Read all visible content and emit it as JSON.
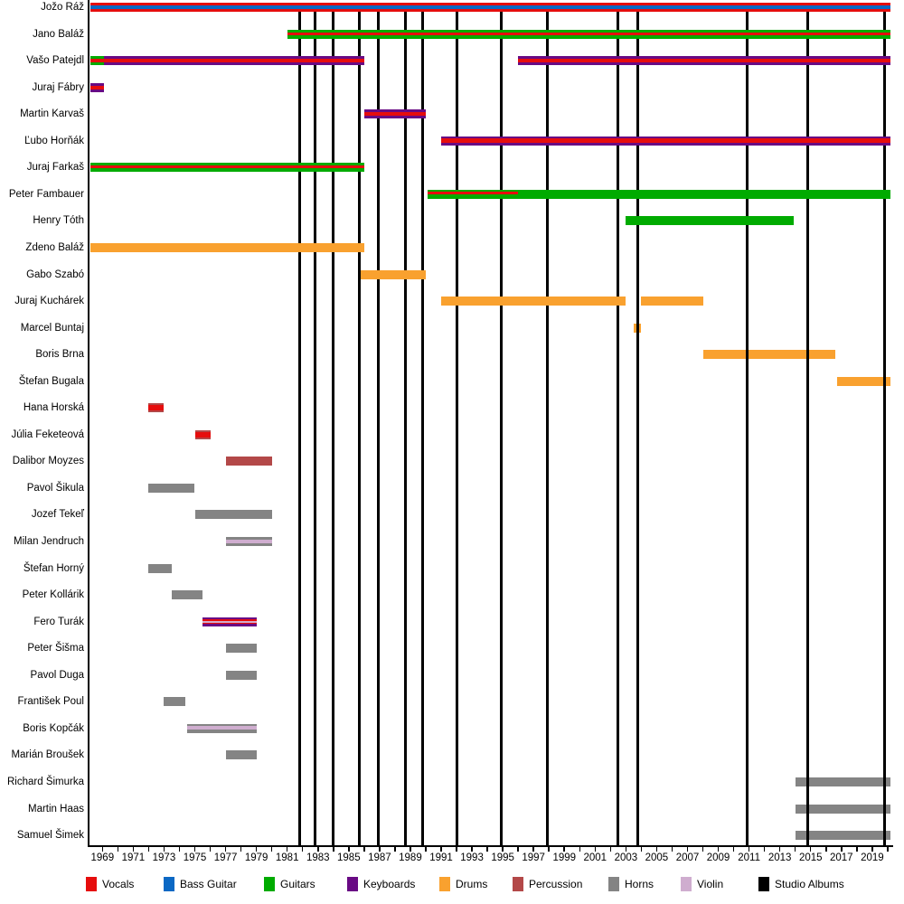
{
  "chart_data": {
    "type": "timeline",
    "description": "Band members timeline with studio album release lines",
    "x_axis": {
      "start": 1968.1,
      "end": 2020.3,
      "tick_labels": [
        1969,
        1971,
        1973,
        1975,
        1977,
        1979,
        1981,
        1983,
        1985,
        1987,
        1989,
        1991,
        1993,
        1995,
        1997,
        1999,
        2001,
        2003,
        2005,
        2007,
        2009,
        2011,
        2013,
        2015,
        2017,
        2019
      ],
      "minor_tick_start": 1969,
      "minor_tick_end": 2020,
      "minor_tick_step": 1
    },
    "colors": {
      "vocals": "#e60d0d",
      "bass": "#0b68c4",
      "guitars": "#00ab00",
      "keyboards": "#690a84",
      "drums": "#f9a12f",
      "percussion": "#b34848",
      "horns": "#848484",
      "violin": "#cfadcf",
      "albums": "#000000"
    },
    "legend": [
      {
        "label": "Vocals",
        "key": "vocals"
      },
      {
        "label": "Bass Guitar",
        "key": "bass"
      },
      {
        "label": "Guitars",
        "key": "guitars"
      },
      {
        "label": "Keyboards",
        "key": "keyboards"
      },
      {
        "label": "Drums",
        "key": "drums"
      },
      {
        "label": "Percussion",
        "key": "percussion"
      },
      {
        "label": "Horns",
        "key": "horns"
      },
      {
        "label": "Violin",
        "key": "violin"
      },
      {
        "label": "Studio Albums",
        "key": "albums"
      }
    ],
    "album_lines": {
      "legend_label": "Studio Albums",
      "years": [
        1981.8,
        1982.8,
        1984.0,
        1985.7,
        1986.9,
        1988.7,
        1989.8,
        1992.0,
        1994.9,
        1997.9,
        2002.5,
        2003.8,
        2010.9,
        2014.8,
        2019.8
      ]
    },
    "members": [
      {
        "name": "Jožo Ráž",
        "instruments": [
          "Vocals",
          "Bass Guitar"
        ],
        "segments": [
          {
            "start": 1968.2,
            "end": 2020.2,
            "stripes": [
              [
                "vocals",
                3
              ],
              [
                "bass",
                4
              ],
              [
                "vocals",
                3
              ]
            ]
          }
        ]
      },
      {
        "name": "Jano Baláž",
        "instruments": [
          "Guitars",
          "Vocals"
        ],
        "segments": [
          {
            "start": 1981.0,
            "end": 2020.2,
            "stripes": [
              [
                "guitars",
                3
              ],
              [
                "vocals",
                3
              ],
              [
                "guitars",
                4
              ]
            ]
          }
        ]
      },
      {
        "name": "Vašo Patejdl",
        "instruments": [
          "Vocals",
          "Guitars",
          "Keyboards"
        ],
        "segments": [
          {
            "start": 1968.2,
            "end": 1969.1,
            "stripes": [
              [
                "guitars",
                3
              ],
              [
                "vocals",
                4
              ],
              [
                "guitars",
                3
              ]
            ]
          },
          {
            "start": 1969.1,
            "end": 1986.0,
            "stripes": [
              [
                "keyboards",
                2.5
              ],
              [
                "vocals",
                4.5
              ],
              [
                "keyboards",
                3
              ]
            ]
          },
          {
            "start": 1996.0,
            "end": 2020.2,
            "stripes": [
              [
                "keyboards",
                2.5
              ],
              [
                "vocals",
                4.5
              ],
              [
                "keyboards",
                3
              ]
            ]
          }
        ]
      },
      {
        "name": "Juraj Fábry",
        "instruments": [
          "Keyboards",
          "Vocals"
        ],
        "segments": [
          {
            "start": 1968.2,
            "end": 1969.1,
            "stripes": [
              [
                "keyboards",
                3
              ],
              [
                "vocals",
                4
              ],
              [
                "keyboards",
                3
              ]
            ]
          }
        ]
      },
      {
        "name": "Martin Karvaš",
        "instruments": [
          "Keyboards",
          "Vocals"
        ],
        "segments": [
          {
            "start": 1986.0,
            "end": 1990.0,
            "stripes": [
              [
                "keyboards",
                2.5
              ],
              [
                "vocals",
                4.5
              ],
              [
                "keyboards",
                3
              ]
            ]
          }
        ]
      },
      {
        "name": "Ľubo Horňák",
        "instruments": [
          "Keyboards",
          "Vocals"
        ],
        "segments": [
          {
            "start": 1991.0,
            "end": 2020.2,
            "stripes": [
              [
                "keyboards",
                2.5
              ],
              [
                "vocals",
                4.5
              ],
              [
                "keyboards",
                3
              ]
            ]
          }
        ]
      },
      {
        "name": "Juraj Farkaš",
        "instruments": [
          "Guitars",
          "Vocals"
        ],
        "segments": [
          {
            "start": 1968.2,
            "end": 1986.0,
            "stripes": [
              [
                "guitars",
                3
              ],
              [
                "vocals",
                3
              ],
              [
                "guitars",
                4
              ]
            ]
          }
        ]
      },
      {
        "name": "Peter Fambauer",
        "instruments": [
          "Guitars",
          "Vocals"
        ],
        "segments": [
          {
            "start": 1990.1,
            "end": 1996.0,
            "stripes": [
              [
                "guitars",
                2
              ],
              [
                "vocals",
                3
              ],
              [
                "guitars",
                5
              ]
            ]
          },
          {
            "start": 1996.0,
            "end": 2020.2,
            "stripes": [
              [
                "guitars",
                10
              ]
            ]
          }
        ]
      },
      {
        "name": "Henry Tóth",
        "instruments": [
          "Guitars"
        ],
        "segments": [
          {
            "start": 2003.0,
            "end": 2013.9,
            "stripes": [
              [
                "guitars",
                10
              ]
            ]
          }
        ]
      },
      {
        "name": "Zdeno Baláž",
        "instruments": [
          "Drums"
        ],
        "segments": [
          {
            "start": 1968.2,
            "end": 1986.0,
            "stripes": [
              [
                "drums",
                10
              ]
            ]
          }
        ]
      },
      {
        "name": "Gabo Szabó",
        "instruments": [
          "Drums"
        ],
        "segments": [
          {
            "start": 1985.8,
            "end": 1990.0,
            "stripes": [
              [
                "drums",
                10
              ]
            ]
          }
        ]
      },
      {
        "name": "Juraj Kuchárek",
        "instruments": [
          "Drums"
        ],
        "segments": [
          {
            "start": 1991.0,
            "end": 2003.0,
            "stripes": [
              [
                "drums",
                10
              ]
            ]
          },
          {
            "start": 2004.0,
            "end": 2008.0,
            "stripes": [
              [
                "drums",
                10
              ]
            ]
          }
        ]
      },
      {
        "name": "Marcel Buntaj",
        "instruments": [
          "Drums"
        ],
        "lines_over": true,
        "segments": [
          {
            "start": 2003.5,
            "end": 2004.0,
            "stripes": [
              [
                "drums",
                10
              ]
            ]
          }
        ]
      },
      {
        "name": "Boris Brna",
        "instruments": [
          "Drums"
        ],
        "lines_over": true,
        "segments": [
          {
            "start": 2008.0,
            "end": 2016.6,
            "stripes": [
              [
                "drums",
                10
              ]
            ]
          }
        ]
      },
      {
        "name": "Štefan Bugala",
        "instruments": [
          "Drums"
        ],
        "lines_over": true,
        "segments": [
          {
            "start": 2016.7,
            "end": 2020.2,
            "stripes": [
              [
                "drums",
                10
              ]
            ]
          }
        ]
      },
      {
        "name": "Hana Horská",
        "instruments": [
          "Vocals",
          "Percussion"
        ],
        "segments": [
          {
            "start": 1972.0,
            "end": 1973.0,
            "stripes": [
              [
                "percussion",
                2
              ],
              [
                "vocals",
                6
              ],
              [
                "percussion",
                2
              ]
            ]
          }
        ]
      },
      {
        "name": "Júlia Feketeová",
        "instruments": [
          "Vocals",
          "Percussion"
        ],
        "segments": [
          {
            "start": 1975.0,
            "end": 1976.0,
            "stripes": [
              [
                "percussion",
                2
              ],
              [
                "vocals",
                6
              ],
              [
                "percussion",
                2
              ]
            ]
          }
        ]
      },
      {
        "name": "Dalibor Moyzes",
        "instruments": [
          "Percussion"
        ],
        "segments": [
          {
            "start": 1977.0,
            "end": 1980.0,
            "stripes": [
              [
                "percussion",
                10
              ]
            ]
          }
        ]
      },
      {
        "name": "Pavol Šikula",
        "instruments": [
          "Horns"
        ],
        "segments": [
          {
            "start": 1972.0,
            "end": 1975.0,
            "stripes": [
              [
                "horns",
                10
              ]
            ]
          }
        ]
      },
      {
        "name": "Jozef Tekeľ",
        "instruments": [
          "Horns"
        ],
        "segments": [
          {
            "start": 1975.0,
            "end": 1980.0,
            "stripes": [
              [
                "horns",
                10
              ]
            ]
          }
        ]
      },
      {
        "name": "Milan Jendruch",
        "instruments": [
          "Horns",
          "Violin"
        ],
        "segments": [
          {
            "start": 1977.0,
            "end": 1980.0,
            "stripes": [
              [
                "horns",
                2.5
              ],
              [
                "violin",
                4
              ],
              [
                "horns",
                3.5
              ]
            ]
          }
        ]
      },
      {
        "name": "Štefan Horný",
        "instruments": [
          "Horns"
        ],
        "segments": [
          {
            "start": 1972.0,
            "end": 1973.5,
            "stripes": [
              [
                "horns",
                10
              ]
            ]
          }
        ]
      },
      {
        "name": "Peter Kollárik",
        "instruments": [
          "Horns"
        ],
        "segments": [
          {
            "start": 1973.5,
            "end": 1975.5,
            "stripes": [
              [
                "horns",
                10
              ]
            ]
          }
        ]
      },
      {
        "name": "Fero Turák",
        "instruments": [
          "Keyboards",
          "Vocals",
          "Violin"
        ],
        "segments": [
          {
            "start": 1975.5,
            "end": 1979.0,
            "stripes": [
              [
                "keyboards",
                2
              ],
              [
                "vocals",
                2.5
              ],
              [
                "violin",
                1.5
              ],
              [
                "vocals",
                1.5
              ],
              [
                "keyboards",
                2.5
              ]
            ]
          }
        ]
      },
      {
        "name": "Peter Šišma",
        "instruments": [
          "Horns"
        ],
        "segments": [
          {
            "start": 1977.0,
            "end": 1979.0,
            "stripes": [
              [
                "horns",
                10
              ]
            ]
          }
        ]
      },
      {
        "name": "Pavol Duga",
        "instruments": [
          "Horns"
        ],
        "segments": [
          {
            "start": 1977.0,
            "end": 1979.0,
            "stripes": [
              [
                "horns",
                10
              ]
            ]
          }
        ]
      },
      {
        "name": "František Poul",
        "instruments": [
          "Horns"
        ],
        "segments": [
          {
            "start": 1973.0,
            "end": 1974.4,
            "stripes": [
              [
                "horns",
                10
              ]
            ]
          }
        ]
      },
      {
        "name": "Boris Kopčák",
        "instruments": [
          "Horns",
          "Violin"
        ],
        "segments": [
          {
            "start": 1974.5,
            "end": 1979.0,
            "stripes": [
              [
                "horns",
                2
              ],
              [
                "violin",
                4
              ],
              [
                "horns",
                4
              ]
            ]
          }
        ]
      },
      {
        "name": "Marián Broušek",
        "instruments": [
          "Horns"
        ],
        "segments": [
          {
            "start": 1977.0,
            "end": 1979.0,
            "stripes": [
              [
                "horns",
                10
              ]
            ]
          }
        ]
      },
      {
        "name": "Richard Šimurka",
        "instruments": [
          "Horns"
        ],
        "lines_over": true,
        "segments": [
          {
            "start": 2014.0,
            "end": 2020.2,
            "stripes": [
              [
                "horns",
                10
              ]
            ]
          }
        ]
      },
      {
        "name": "Martin Haas",
        "instruments": [
          "Horns"
        ],
        "lines_over": true,
        "segments": [
          {
            "start": 2014.0,
            "end": 2020.2,
            "stripes": [
              [
                "horns",
                10
              ]
            ]
          }
        ]
      },
      {
        "name": "Samuel Šimek",
        "instruments": [
          "Horns"
        ],
        "lines_over": true,
        "segments": [
          {
            "start": 2014.0,
            "end": 2020.2,
            "stripes": [
              [
                "horns",
                10
              ]
            ]
          }
        ]
      }
    ]
  }
}
